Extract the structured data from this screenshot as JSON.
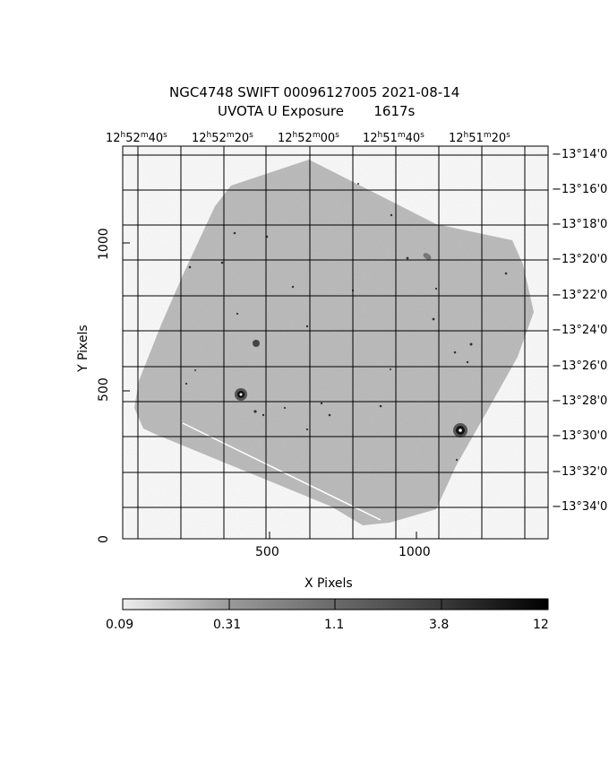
{
  "title": {
    "line1": "NGC4748 SWIFT 00096127005 2021-08-14",
    "line2": "UVOTA U Exposure       1617s"
  },
  "axes": {
    "x_label": "X Pixels",
    "y_label": "Y Pixels",
    "x_ticks": [
      "500",
      "1000"
    ],
    "y_ticks": [
      "0",
      "500",
      "1000"
    ]
  },
  "ra_labels": [
    "12h52m40s",
    "12h52m20s",
    "12h52m00s",
    "12h51m40s",
    "12h51m20s"
  ],
  "dec_labels": [
    "−13°14'0",
    "−13°16'0",
    "−13°18'0",
    "−13°20'0",
    "−13°22'0",
    "−13°24'0",
    "−13°26'0",
    "−13°28'0",
    "−13°30'0",
    "−13°32'0",
    "−13°34'0"
  ],
  "colorbar": {
    "labels": [
      "0.09",
      "0.31",
      "1.1",
      "3.8",
      "12"
    ]
  }
}
